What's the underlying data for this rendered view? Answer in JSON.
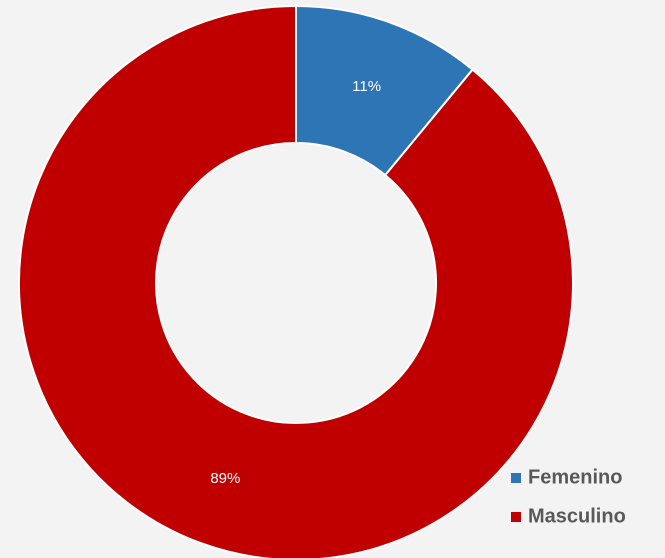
{
  "chart_data": {
    "type": "donut",
    "categories": [
      "Femenino",
      "Masculino"
    ],
    "values": [
      11,
      89
    ],
    "value_labels": [
      "11%",
      "89%"
    ],
    "colors": [
      "#2e75b6",
      "#c00000"
    ],
    "legend": "bottom-right"
  }
}
